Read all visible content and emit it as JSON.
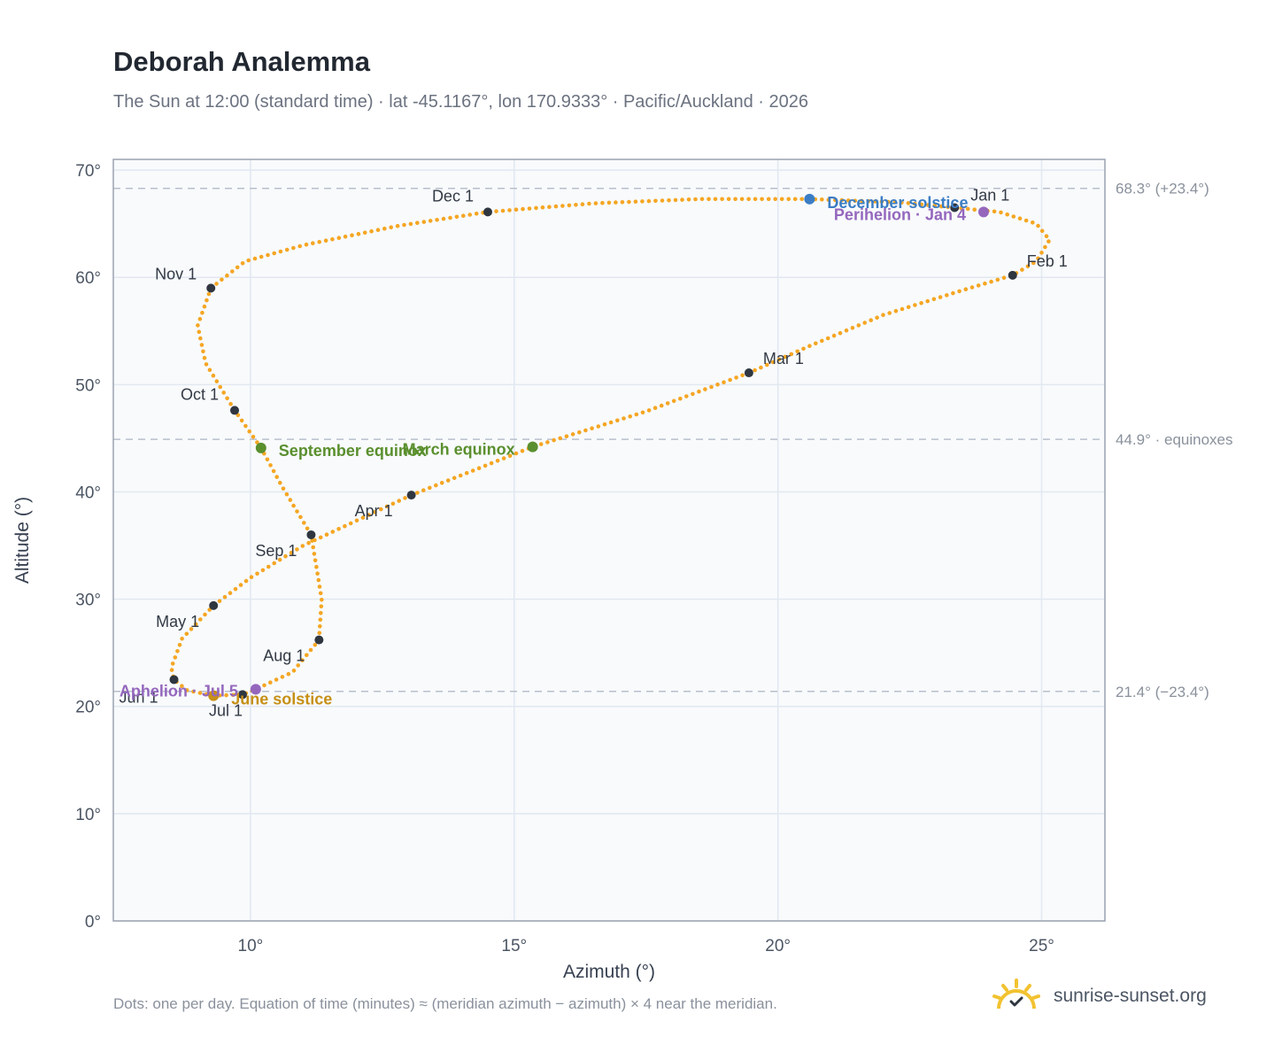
{
  "title": "Deborah Analemma",
  "subtitle": "The Sun at 12:00 (standard time) · lat -45.1167°, lon 170.9333° · Pacific/Auckland · 2026",
  "footnote": "Dots: one per day. Equation of time (minutes) ≈ (meridian azimuth − azimuth) × 4 near the meridian.",
  "brand": "sunrise-sunset.org",
  "colors": {
    "curve": "#f5a623",
    "month_marker": "#2f3640",
    "equinox": "#5a8f2e",
    "december_solstice": "#3b7dc4",
    "june_solstice": "#c79016",
    "aphelion_perihelion": "#9467bd",
    "plot_bg": "#f8fafc",
    "grid": "#e2e8f0",
    "frame": "#9aa3b0"
  },
  "chart_data": {
    "type": "scatter",
    "xlabel": "Azimuth (°)",
    "ylabel": "Altitude (°)",
    "xlim": [
      7.4,
      26.2
    ],
    "ylim": [
      0,
      71
    ],
    "x_ticks": [
      10,
      15,
      20,
      25
    ],
    "x_tick_labels": [
      "10°",
      "15°",
      "20°",
      "25°"
    ],
    "y_ticks": [
      0,
      10,
      20,
      30,
      40,
      50,
      60,
      70
    ],
    "y_tick_labels": [
      "0°",
      "10°",
      "20°",
      "30°",
      "40°",
      "50°",
      "60°",
      "70°"
    ],
    "grid": true,
    "reference_lines": [
      {
        "y": 68.3,
        "label": "68.3° (+23.4°)"
      },
      {
        "y": 44.9,
        "label": "44.9° · equinoxes"
      },
      {
        "y": 21.4,
        "label": "21.4° (−23.4°)"
      }
    ],
    "month_markers": [
      {
        "label": "Jan 1",
        "x": 23.35,
        "y": 66.5
      },
      {
        "label": "Feb 1",
        "x": 24.45,
        "y": 60.2
      },
      {
        "label": "Mar 1",
        "x": 19.45,
        "y": 51.1
      },
      {
        "label": "Apr 1",
        "x": 13.05,
        "y": 39.7
      },
      {
        "label": "May 1",
        "x": 9.3,
        "y": 29.4
      },
      {
        "label": "Jun 1",
        "x": 8.55,
        "y": 22.5
      },
      {
        "label": "Jul 1",
        "x": 9.85,
        "y": 21.1
      },
      {
        "label": "Aug 1",
        "x": 11.3,
        "y": 26.2
      },
      {
        "label": "Sep 1",
        "x": 11.15,
        "y": 36.0
      },
      {
        "label": "Oct 1",
        "x": 9.7,
        "y": 47.6
      },
      {
        "label": "Nov 1",
        "x": 9.25,
        "y": 59.0
      },
      {
        "label": "Dec 1",
        "x": 14.5,
        "y": 66.1
      }
    ],
    "events": [
      {
        "label": "December solstice",
        "x": 20.6,
        "y": 67.3,
        "kind": "december_solstice"
      },
      {
        "label": "Perihelion · Jan 4",
        "x": 23.9,
        "y": 66.1,
        "kind": "aphelion_perihelion"
      },
      {
        "label": "March equinox",
        "x": 15.35,
        "y": 44.2,
        "kind": "equinox"
      },
      {
        "label": "September equinox",
        "x": 10.2,
        "y": 44.1,
        "kind": "equinox"
      },
      {
        "label": "June solstice",
        "x": 9.3,
        "y": 21.0,
        "kind": "june_solstice"
      },
      {
        "label": "Aphelion · Jul 5",
        "x": 10.1,
        "y": 21.6,
        "kind": "aphelion_perihelion"
      }
    ],
    "path": [
      {
        "x": 23.35,
        "y": 66.5
      },
      {
        "x": 24.2,
        "y": 66.1
      },
      {
        "x": 24.9,
        "y": 65.0
      },
      {
        "x": 25.15,
        "y": 63.5
      },
      {
        "x": 24.9,
        "y": 61.5
      },
      {
        "x": 24.45,
        "y": 60.2
      },
      {
        "x": 23.5,
        "y": 58.8
      },
      {
        "x": 22.0,
        "y": 56.5
      },
      {
        "x": 20.6,
        "y": 53.6
      },
      {
        "x": 19.45,
        "y": 51.1
      },
      {
        "x": 17.5,
        "y": 47.5
      },
      {
        "x": 15.35,
        "y": 44.2
      },
      {
        "x": 13.05,
        "y": 39.7
      },
      {
        "x": 11.0,
        "y": 35.0
      },
      {
        "x": 10.0,
        "y": 32.0
      },
      {
        "x": 9.3,
        "y": 29.4
      },
      {
        "x": 8.7,
        "y": 26.3
      },
      {
        "x": 8.5,
        "y": 23.6
      },
      {
        "x": 8.55,
        "y": 22.5
      },
      {
        "x": 8.8,
        "y": 21.5
      },
      {
        "x": 9.3,
        "y": 21.0
      },
      {
        "x": 9.85,
        "y": 21.1
      },
      {
        "x": 10.1,
        "y": 21.6
      },
      {
        "x": 10.8,
        "y": 23.2
      },
      {
        "x": 11.3,
        "y": 26.2
      },
      {
        "x": 11.35,
        "y": 30.0
      },
      {
        "x": 11.15,
        "y": 36.0
      },
      {
        "x": 10.6,
        "y": 40.5
      },
      {
        "x": 10.2,
        "y": 44.1
      },
      {
        "x": 9.7,
        "y": 47.6
      },
      {
        "x": 9.15,
        "y": 52.0
      },
      {
        "x": 9.0,
        "y": 55.5
      },
      {
        "x": 9.25,
        "y": 59.0
      },
      {
        "x": 9.9,
        "y": 61.5
      },
      {
        "x": 11.0,
        "y": 63.0
      },
      {
        "x": 12.8,
        "y": 64.8
      },
      {
        "x": 14.5,
        "y": 66.1
      },
      {
        "x": 16.5,
        "y": 66.9
      },
      {
        "x": 18.5,
        "y": 67.3
      },
      {
        "x": 20.6,
        "y": 67.3
      },
      {
        "x": 22.3,
        "y": 67.0
      },
      {
        "x": 23.35,
        "y": 66.5
      }
    ]
  }
}
